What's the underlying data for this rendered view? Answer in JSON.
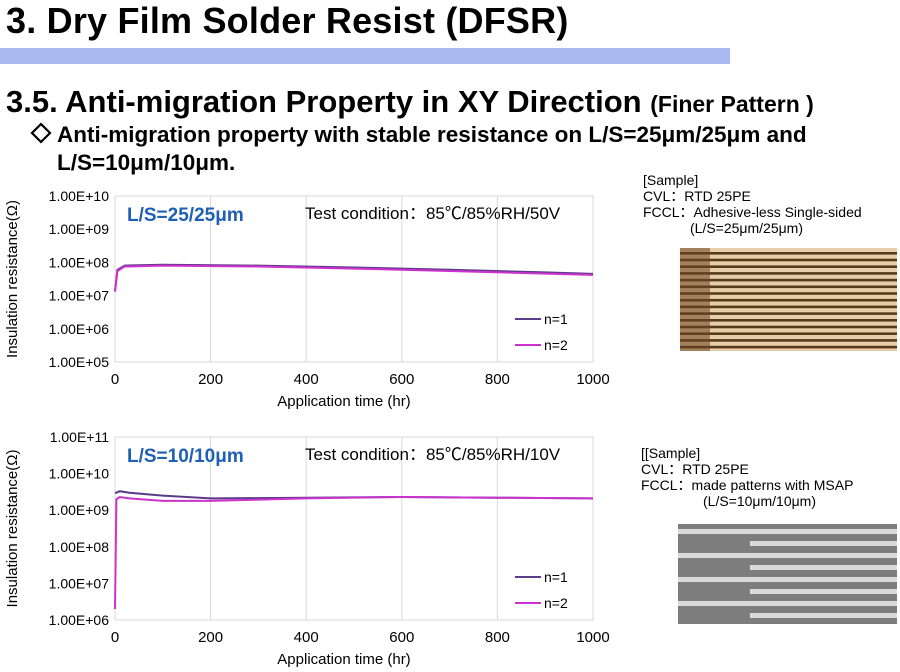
{
  "page": {
    "title": "3. Dry Film Solder Resist (DFSR)",
    "section_title": "3.5. Anti-migration Property in XY Direction",
    "section_suffix": "(Finer Pattern )",
    "bullet_line1": "Anti-migration property with stable resistance on  L/S=25μm/25μm and",
    "bullet_line2": "L/S=10μm/10μm.",
    "bullet_icon": "diamond-outline-icon",
    "colors": {
      "title_bar": "#a9b8ee",
      "label_blue": "#1f5fb5",
      "n1": "#5b3a8a",
      "n2": "#cc33cc"
    }
  },
  "samples": [
    {
      "heading": "[Sample]",
      "cvl": "CVL：RTD 25PE",
      "fccl": "FCCL：Adhesive-less Single-sided",
      "ls": "(L/S=25μm/25μm)"
    },
    {
      "heading": "[[Sample]",
      "cvl": "CVL：RTD 25PE",
      "fccl": "FCCL：made patterns with MSAP",
      "ls": "(L/S=10μm/10μm)"
    }
  ],
  "chart_data": [
    {
      "type": "line",
      "scale": "log",
      "label": "L/S=25/25μm",
      "test_condition": "Test condition：85℃/85%RH/50V",
      "xlabel": "Application time (hr)",
      "ylabel": "Insulation resistance(Ω)",
      "xlim": [
        0,
        1000
      ],
      "x_ticks": [
        "0",
        "200",
        "400",
        "600",
        "800",
        "1000"
      ],
      "ylim": [
        100000.0,
        10000000000.0
      ],
      "y_ticks": [
        "1.00E+05",
        "1.00E+06",
        "1.00E+07",
        "1.00E+08",
        "1.00E+09",
        "1.00E+10"
      ],
      "grid": "vertical",
      "legend_position": "bottom-right",
      "series": [
        {
          "name": "n=1",
          "x": [
            0,
            5,
            20,
            100,
            300,
            500,
            700,
            900,
            1000
          ],
          "values": [
            14000000.0,
            60000000.0,
            80000000.0,
            85000000.0,
            80000000.0,
            70000000.0,
            60000000.0,
            50000000.0,
            45000000.0
          ]
        },
        {
          "name": "n=2",
          "x": [
            0,
            5,
            20,
            100,
            300,
            500,
            700,
            900,
            1000
          ],
          "values": [
            13000000.0,
            55000000.0,
            75000000.0,
            80000000.0,
            75000000.0,
            65000000.0,
            55000000.0,
            46000000.0,
            42000000.0
          ]
        }
      ]
    },
    {
      "type": "line",
      "scale": "log",
      "label": "L/S=10/10μm",
      "test_condition": "Test condition：85℃/85%RH/10V",
      "xlabel": "Application time (hr)",
      "ylabel": "Insulation resistance(Ω)",
      "xlim": [
        0,
        1000
      ],
      "x_ticks": [
        "0",
        "200",
        "400",
        "600",
        "800",
        "1000"
      ],
      "ylim": [
        1000000.0,
        100000000000.0
      ],
      "y_ticks": [
        "1.00E+06",
        "1.00E+07",
        "1.00E+08",
        "1.00E+09",
        "1.00E+10",
        "1.00E+11"
      ],
      "grid": "vertical",
      "legend_position": "bottom-right",
      "series": [
        {
          "name": "n=1",
          "x": [
            0,
            3,
            10,
            30,
            100,
            200,
            400,
            600,
            800,
            1000
          ],
          "values": [
            3000000000.0,
            3000000000.0,
            3300000000.0,
            3000000000.0,
            2500000000.0,
            2100000000.0,
            2200000000.0,
            2300000000.0,
            2200000000.0,
            2100000000.0
          ]
        },
        {
          "name": "n=2",
          "x": [
            0,
            3,
            10,
            30,
            100,
            200,
            400,
            600,
            800,
            1000
          ],
          "values": [
            2000000.0,
            2000000000.0,
            2300000000.0,
            2100000000.0,
            1800000000.0,
            1800000000.0,
            2100000000.0,
            2300000000.0,
            2200000000.0,
            2100000000.0
          ]
        }
      ]
    }
  ]
}
